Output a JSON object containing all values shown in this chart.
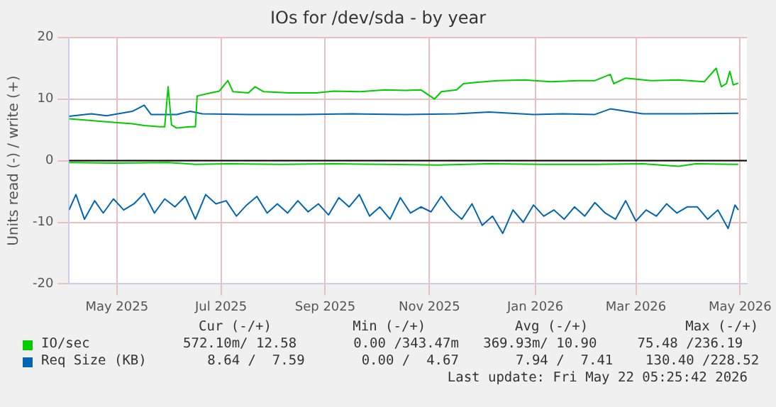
{
  "chart_data": {
    "type": "line",
    "title": "IOs for /dev/sda - by year",
    "ylabel": "Units read (-) / write (+)",
    "xlim": [
      "2025-04-18",
      "2026-05-20"
    ],
    "xticks": [
      {
        "value": "2025-05-16",
        "label": "May 2025"
      },
      {
        "value": "2025-07-16",
        "label": "Jul 2025"
      },
      {
        "value": "2025-09-15",
        "label": "Sep 2025"
      },
      {
        "value": "2025-11-15",
        "label": "Nov 2025"
      },
      {
        "value": "2026-01-16",
        "label": "Jan 2026"
      },
      {
        "value": "2026-03-16",
        "label": "Mar 2026"
      },
      {
        "value": "2026-05-16",
        "label": "May 2026"
      }
    ],
    "ylim": [
      -20,
      20
    ],
    "yticks": [
      -20,
      -10,
      0,
      10,
      20
    ],
    "grid": true,
    "legend": "bottom",
    "marker": "none",
    "line_style": "solid",
    "ref_lines": [
      {
        "axis": "y",
        "value": 0,
        "color": "#000000"
      }
    ],
    "series": [
      {
        "name": "IO/sec",
        "color": "#00cc00",
        "x": [
          "2025-04-18",
          "2025-05-01",
          "2025-05-15",
          "2025-05-25",
          "2025-06-01",
          "2025-06-10",
          "2025-06-13",
          "2025-06-15",
          "2025-06-17",
          "2025-06-20",
          "2025-06-28",
          "2025-07-01",
          "2025-07-02",
          "2025-07-10",
          "2025-07-15",
          "2025-07-20",
          "2025-07-23",
          "2025-08-01",
          "2025-08-05",
          "2025-08-10",
          "2025-08-25",
          "2025-09-10",
          "2025-09-20",
          "2025-10-05",
          "2025-10-20",
          "2025-11-01",
          "2025-11-10",
          "2025-11-18",
          "2025-11-22",
          "2025-12-01",
          "2025-12-05",
          "2025-12-12",
          "2025-12-25",
          "2026-01-10",
          "2026-01-25",
          "2026-02-10",
          "2026-02-20",
          "2026-03-01",
          "2026-03-03",
          "2026-03-10",
          "2026-03-25",
          "2026-04-10",
          "2026-04-25",
          "2026-05-02",
          "2026-05-05",
          "2026-05-08",
          "2026-05-10",
          "2026-05-12",
          "2026-05-15"
        ],
        "values": [
          6.8,
          6.5,
          6.2,
          6.0,
          5.7,
          5.5,
          5.5,
          12.0,
          5.8,
          5.3,
          5.5,
          5.5,
          10.5,
          11.0,
          11.3,
          13.0,
          11.2,
          11.0,
          12.0,
          11.2,
          11.0,
          11.0,
          11.3,
          11.2,
          11.5,
          11.4,
          11.5,
          10.0,
          11.2,
          11.5,
          12.5,
          12.7,
          13.0,
          13.1,
          12.8,
          13.0,
          13.0,
          14.0,
          12.5,
          13.4,
          13.0,
          13.1,
          12.8,
          15.0,
          12.0,
          12.5,
          14.5,
          12.3,
          12.6
        ]
      },
      {
        "color": "#00cc00",
        "x": [
          "2025-04-18",
          "2025-05-15",
          "2025-06-15",
          "2025-07-01",
          "2025-07-20",
          "2025-08-20",
          "2025-09-20",
          "2025-10-20",
          "2025-11-20",
          "2025-12-20",
          "2026-01-20",
          "2026-02-20",
          "2026-03-20",
          "2026-04-10",
          "2026-04-20",
          "2026-05-15"
        ],
        "values": [
          -0.3,
          -0.4,
          -0.3,
          -0.6,
          -0.5,
          -0.6,
          -0.5,
          -0.6,
          -0.7,
          -0.5,
          -0.6,
          -0.6,
          -0.5,
          -0.9,
          -0.5,
          -0.6
        ]
      },
      {
        "name": "Req Size (KB)",
        "color": "#0066b3",
        "x": [
          "2025-04-18",
          "2025-05-01",
          "2025-05-10",
          "2025-05-25",
          "2025-06-01",
          "2025-06-05",
          "2025-06-20",
          "2025-06-28",
          "2025-07-05",
          "2025-08-01",
          "2025-09-01",
          "2025-10-01",
          "2025-11-01",
          "2025-12-01",
          "2025-12-20",
          "2026-01-15",
          "2026-02-01",
          "2026-02-20",
          "2026-03-01",
          "2026-03-20",
          "2026-04-15",
          "2026-05-15"
        ],
        "values": [
          7.2,
          7.6,
          7.3,
          8.0,
          9.0,
          7.5,
          7.5,
          8.0,
          7.6,
          7.5,
          7.5,
          7.6,
          7.5,
          7.6,
          7.9,
          7.5,
          7.6,
          7.5,
          8.4,
          7.6,
          7.6,
          7.7
        ]
      },
      {
        "color": "#0066b3",
        "x": [
          "2025-04-18",
          "2025-04-22",
          "2025-04-27",
          "2025-05-03",
          "2025-05-08",
          "2025-05-14",
          "2025-05-20",
          "2025-05-26",
          "2025-06-01",
          "2025-06-07",
          "2025-06-13",
          "2025-06-19",
          "2025-06-25",
          "2025-07-01",
          "2025-07-07",
          "2025-07-13",
          "2025-07-19",
          "2025-07-25",
          "2025-07-31",
          "2025-08-06",
          "2025-08-12",
          "2025-08-18",
          "2025-08-24",
          "2025-08-30",
          "2025-09-05",
          "2025-09-11",
          "2025-09-17",
          "2025-09-23",
          "2025-09-29",
          "2025-10-05",
          "2025-10-11",
          "2025-10-17",
          "2025-10-23",
          "2025-10-29",
          "2025-11-04",
          "2025-11-10",
          "2025-11-16",
          "2025-11-22",
          "2025-11-28",
          "2025-12-04",
          "2025-12-10",
          "2025-12-16",
          "2025-12-22",
          "2025-12-28",
          "2026-01-03",
          "2026-01-09",
          "2026-01-15",
          "2026-01-21",
          "2026-01-27",
          "2026-02-02",
          "2026-02-08",
          "2026-02-14",
          "2026-02-20",
          "2026-02-26",
          "2026-03-04",
          "2026-03-10",
          "2026-03-16",
          "2026-03-22",
          "2026-03-28",
          "2026-04-03",
          "2026-04-09",
          "2026-04-15",
          "2026-04-21",
          "2026-04-27",
          "2026-05-03",
          "2026-05-09",
          "2026-05-13",
          "2026-05-15"
        ],
        "values": [
          -8.0,
          -5.5,
          -9.5,
          -6.5,
          -8.5,
          -6.2,
          -8.0,
          -7.0,
          -5.3,
          -8.5,
          -6.2,
          -7.5,
          -5.8,
          -9.5,
          -5.5,
          -7.0,
          -6.5,
          -9.0,
          -7.2,
          -5.8,
          -8.5,
          -7.0,
          -8.5,
          -6.5,
          -8.3,
          -7.0,
          -8.8,
          -6.0,
          -7.5,
          -5.5,
          -9.0,
          -7.5,
          -9.5,
          -6.0,
          -8.5,
          -7.5,
          -8.3,
          -5.8,
          -8.0,
          -9.5,
          -7.0,
          -10.5,
          -9.0,
          -11.8,
          -8.0,
          -10.0,
          -7.2,
          -9.0,
          -8.0,
          -9.5,
          -7.5,
          -9.0,
          -6.8,
          -8.5,
          -9.5,
          -6.5,
          -9.8,
          -8.0,
          -9.0,
          -7.0,
          -8.5,
          -7.5,
          -7.5,
          -9.5,
          -8.0,
          -11.0,
          -7.2,
          -8.0
        ]
      }
    ],
    "annotations": [
      "Cur (-/+)          Min (-/+)           Avg (-/+)            Max (-/+)",
      "572.10m/ 12.58       0.00 /343.47m   369.93m/ 10.90     75.48 /236.19",
      "   8.64 /  7.59       0.00 /  4.67       7.94 /  7.41    130.40 /228.52",
      "Last update: Fri May 22 05:25:42 2026"
    ]
  }
}
